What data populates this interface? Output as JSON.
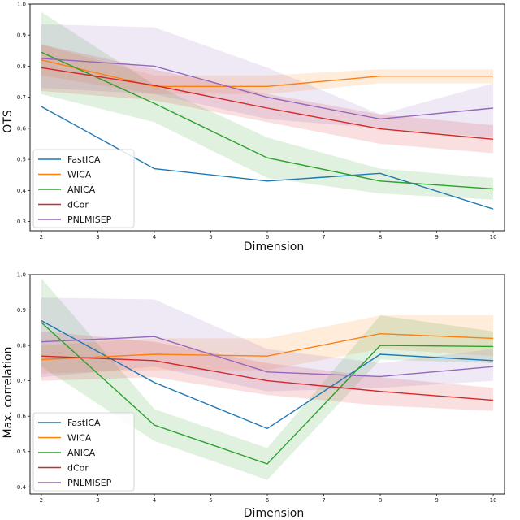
{
  "chart_data": [
    {
      "type": "line",
      "id": "top",
      "xlabel": "Dimension",
      "ylabel": "OTS",
      "xlim": [
        1.8,
        10.2
      ],
      "ylim": [
        0.27,
        1.0
      ],
      "x": [
        2,
        4,
        6,
        8,
        10
      ],
      "xticks": [
        2,
        3,
        4,
        5,
        6,
        7,
        8,
        9,
        10
      ],
      "yticks": [
        0.3,
        0.4,
        0.5,
        0.6,
        0.7,
        0.8,
        0.9,
        1.0
      ],
      "legend_position": "lower-left",
      "series": [
        {
          "name": "FastICA",
          "color": "#1f77b4",
          "values": [
            0.67,
            0.47,
            0.43,
            0.455,
            0.34
          ],
          "band": false
        },
        {
          "name": "WICA",
          "color": "#ff7f0e",
          "values": [
            0.82,
            0.735,
            0.735,
            0.768,
            0.768
          ],
          "lower": [
            0.77,
            0.71,
            0.71,
            0.745,
            0.745
          ],
          "upper": [
            0.87,
            0.77,
            0.77,
            0.79,
            0.79
          ],
          "band": true
        },
        {
          "name": "ANICA",
          "color": "#2ca02c",
          "values": [
            0.845,
            0.68,
            0.505,
            0.43,
            0.405
          ],
          "lower": [
            0.71,
            0.62,
            0.44,
            0.39,
            0.37
          ],
          "upper": [
            0.975,
            0.74,
            0.57,
            0.47,
            0.44
          ],
          "band": true
        },
        {
          "name": "dCor",
          "color": "#d62728",
          "values": [
            0.795,
            0.738,
            0.665,
            0.598,
            0.565
          ],
          "lower": [
            0.72,
            0.69,
            0.62,
            0.55,
            0.52
          ],
          "upper": [
            0.87,
            0.79,
            0.71,
            0.645,
            0.61
          ],
          "band": true
        },
        {
          "name": "PNLMISEP",
          "color": "#9467bd",
          "values": [
            0.825,
            0.8,
            0.7,
            0.63,
            0.665
          ],
          "lower": [
            0.73,
            0.71,
            0.63,
            0.6,
            0.57
          ],
          "upper": [
            0.935,
            0.925,
            0.795,
            0.645,
            0.745
          ],
          "band": true
        }
      ]
    },
    {
      "type": "line",
      "id": "bottom",
      "xlabel": "Dimension",
      "ylabel": "Max. correlation",
      "xlim": [
        1.8,
        10.2
      ],
      "ylim": [
        0.38,
        1.0
      ],
      "x": [
        2,
        4,
        6,
        8,
        10
      ],
      "xticks": [
        2,
        3,
        4,
        5,
        6,
        7,
        8,
        9,
        10
      ],
      "yticks": [
        0.4,
        0.5,
        0.6,
        0.7,
        0.8,
        0.9,
        1.0
      ],
      "legend_position": "lower-left",
      "series": [
        {
          "name": "FastICA",
          "color": "#1f77b4",
          "values": [
            0.87,
            0.695,
            0.565,
            0.775,
            0.757
          ],
          "band": false
        },
        {
          "name": "WICA",
          "color": "#ff7f0e",
          "values": [
            0.76,
            0.775,
            0.77,
            0.833,
            0.82
          ],
          "lower": [
            0.72,
            0.73,
            0.73,
            0.79,
            0.77
          ],
          "upper": [
            0.8,
            0.82,
            0.82,
            0.885,
            0.885
          ],
          "band": true
        },
        {
          "name": "ANICA",
          "color": "#2ca02c",
          "values": [
            0.865,
            0.575,
            0.465,
            0.8,
            0.797
          ],
          "lower": [
            0.74,
            0.53,
            0.42,
            0.76,
            0.75
          ],
          "upper": [
            0.99,
            0.62,
            0.51,
            0.885,
            0.84
          ],
          "band": true
        },
        {
          "name": "dCor",
          "color": "#d62728",
          "values": [
            0.77,
            0.757,
            0.7,
            0.67,
            0.645
          ],
          "lower": [
            0.7,
            0.71,
            0.66,
            0.63,
            0.615
          ],
          "upper": [
            0.84,
            0.81,
            0.75,
            0.71,
            0.68
          ],
          "band": true
        },
        {
          "name": "PNLMISEP",
          "color": "#9467bd",
          "values": [
            0.81,
            0.825,
            0.725,
            0.712,
            0.74
          ],
          "lower": [
            0.71,
            0.74,
            0.67,
            0.68,
            0.7
          ],
          "upper": [
            0.935,
            0.93,
            0.79,
            0.75,
            0.79
          ],
          "band": true
        }
      ]
    }
  ]
}
